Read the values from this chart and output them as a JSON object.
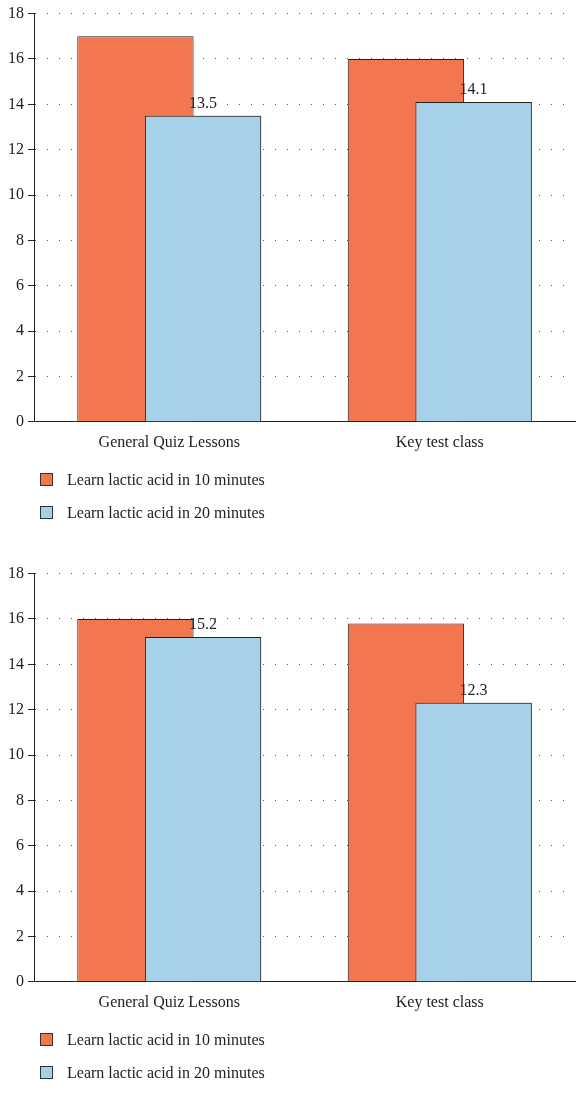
{
  "chart_data": [
    {
      "type": "bar",
      "categories": [
        "General Quiz Lessons",
        "Key test class"
      ],
      "series": [
        {
          "name": "Learn lactic acid in 10 minutes",
          "color": "#f2774e",
          "values": [
            17,
            16
          ]
        },
        {
          "name": "Learn lactic acid in 20 minutes",
          "color": "#a6d1e8",
          "values": [
            13.5,
            14.1
          ],
          "value_labels": [
            "13.5",
            "14.1"
          ]
        }
      ],
      "ylim": [
        0,
        18
      ],
      "yticks": [
        0,
        2,
        4,
        6,
        8,
        10,
        12,
        14,
        16,
        18
      ],
      "grid": "y",
      "legend": "bottom left"
    },
    {
      "type": "bar",
      "categories": [
        "General Quiz Lessons",
        "Key test class"
      ],
      "series": [
        {
          "name": "Learn lactic acid in 10 minutes",
          "color": "#f2774e",
          "values": [
            16,
            15.8
          ]
        },
        {
          "name": "Learn lactic acid in 20 minutes",
          "color": "#a6d1e8",
          "values": [
            15.2,
            12.3
          ],
          "value_labels": [
            "15.2",
            "12.3"
          ]
        }
      ],
      "ylim": [
        0,
        18
      ],
      "yticks": [
        0,
        2,
        4,
        6,
        8,
        10,
        12,
        14,
        16,
        18
      ],
      "grid": "y",
      "legend": "bottom left"
    }
  ]
}
